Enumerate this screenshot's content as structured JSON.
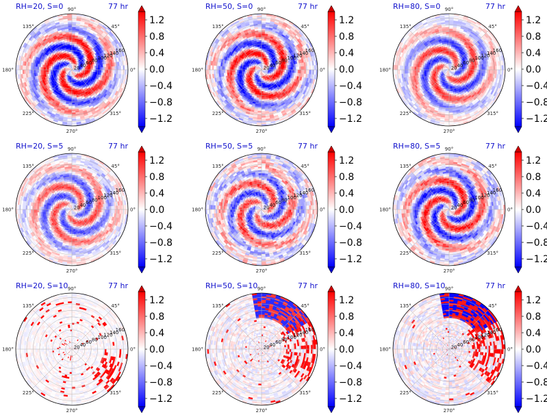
{
  "figure": {
    "colors": {
      "title": "#1010cc",
      "negative": "#0000ff",
      "neutral": "#ffffff",
      "positive": "#ff0000",
      "grid": "#b4b4b4"
    },
    "colorbar": {
      "ticks": [
        "1.2",
        "0.8",
        "0.4",
        "0.0",
        "−0.4",
        "−0.8",
        "−1.2"
      ],
      "range": [
        -1.4,
        1.4
      ],
      "extend": "both",
      "colormap": "bwr"
    }
  },
  "chart_data": [
    {
      "type": "heatmap",
      "projection": "polar",
      "title": "RH=20, S=0",
      "time_label": "77 hr",
      "angle_labels": [
        "90°",
        "45°",
        "0°",
        "315°",
        "270°",
        "225°",
        "180°",
        "135°"
      ],
      "radial_labels": [
        "20",
        "40",
        "60",
        "80",
        "100",
        "120",
        "140",
        "160"
      ],
      "pattern": {
        "kind": "spiral",
        "intensity": 1.0,
        "noise": 0.35,
        "blue_sector": false
      }
    },
    {
      "type": "heatmap",
      "projection": "polar",
      "title": "RH=50, S=0",
      "time_label": "77 hr",
      "angle_labels": [
        "90°",
        "45°",
        "0°",
        "315°",
        "270°",
        "225°",
        "180°",
        "135°"
      ],
      "radial_labels": [
        "20",
        "40",
        "60",
        "80",
        "100",
        "120",
        "140",
        "160"
      ],
      "pattern": {
        "kind": "spiral",
        "intensity": 0.95,
        "noise": 0.4,
        "blue_sector": false
      }
    },
    {
      "type": "heatmap",
      "projection": "polar",
      "title": "RH=80, S=0",
      "time_label": "77 hr",
      "angle_labels": [
        "90°",
        "45°",
        "0°",
        "315°",
        "270°",
        "225°",
        "180°",
        "135°"
      ],
      "radial_labels": [
        "20",
        "40",
        "60",
        "80",
        "100",
        "120",
        "140",
        "160"
      ],
      "pattern": {
        "kind": "spiral",
        "intensity": 0.8,
        "noise": 0.25,
        "blue_sector": false
      }
    },
    {
      "type": "heatmap",
      "projection": "polar",
      "title": "RH=20, S=5",
      "time_label": "77 hr",
      "angle_labels": [
        "90°",
        "45°",
        "0°",
        "315°",
        "270°",
        "225°",
        "180°",
        "135°"
      ],
      "radial_labels": [
        "20",
        "40",
        "60",
        "80",
        "100",
        "120",
        "140",
        "160"
      ],
      "pattern": {
        "kind": "spiral",
        "intensity": 0.7,
        "noise": 0.3,
        "blue_sector": false
      }
    },
    {
      "type": "heatmap",
      "projection": "polar",
      "title": "RH=50, S=5",
      "time_label": "77 hr",
      "angle_labels": [
        "90°",
        "45°",
        "0°",
        "315°",
        "270°",
        "225°",
        "180°",
        "135°"
      ],
      "radial_labels": [
        "20",
        "40",
        "60",
        "80",
        "100",
        "120",
        "140",
        "160"
      ],
      "pattern": {
        "kind": "spiral",
        "intensity": 0.75,
        "noise": 0.45,
        "blue_sector": false
      }
    },
    {
      "type": "heatmap",
      "projection": "polar",
      "title": "RH=80, S=5",
      "time_label": "77 hr",
      "angle_labels": [
        "90°",
        "45°",
        "0°",
        "315°",
        "270°",
        "225°",
        "180°",
        "135°"
      ],
      "radial_labels": [
        "20",
        "40",
        "60",
        "80",
        "100",
        "120",
        "140",
        "160"
      ],
      "pattern": {
        "kind": "spiral",
        "intensity": 0.9,
        "noise": 0.4,
        "blue_sector": false
      }
    },
    {
      "type": "heatmap",
      "projection": "polar",
      "title": "RH=20, S=10",
      "time_label": "77 hr",
      "angle_labels": [
        "90°",
        "45°",
        "0°",
        "315°",
        "270°",
        "225°",
        "180°",
        "135°"
      ],
      "radial_labels": [
        "20",
        "40",
        "60",
        "80",
        "100",
        "120",
        "140",
        "160"
      ],
      "pattern": {
        "kind": "sparse",
        "intensity": 0.25,
        "noise": 0.25,
        "blue_sector": false
      }
    },
    {
      "type": "heatmap",
      "projection": "polar",
      "title": "RH=50, S=10",
      "time_label": "77 hr",
      "angle_labels": [
        "90°",
        "45°",
        "0°",
        "315°",
        "270°",
        "225°",
        "180°",
        "135°"
      ],
      "radial_labels": [
        "20",
        "40",
        "60",
        "80",
        "100",
        "120",
        "140",
        "160"
      ],
      "pattern": {
        "kind": "sector",
        "intensity": 0.6,
        "noise": 0.35,
        "blue_sector": true
      }
    },
    {
      "type": "heatmap",
      "projection": "polar",
      "title": "RH=80, S=10",
      "time_label": "77 hr",
      "angle_labels": [
        "90°",
        "45°",
        "0°",
        "315°",
        "270°",
        "225°",
        "180°",
        "135°"
      ],
      "radial_labels": [
        "20",
        "40",
        "60",
        "80",
        "100",
        "120",
        "140",
        "160"
      ],
      "pattern": {
        "kind": "sector",
        "intensity": 0.7,
        "noise": 0.4,
        "blue_sector": true
      }
    }
  ]
}
